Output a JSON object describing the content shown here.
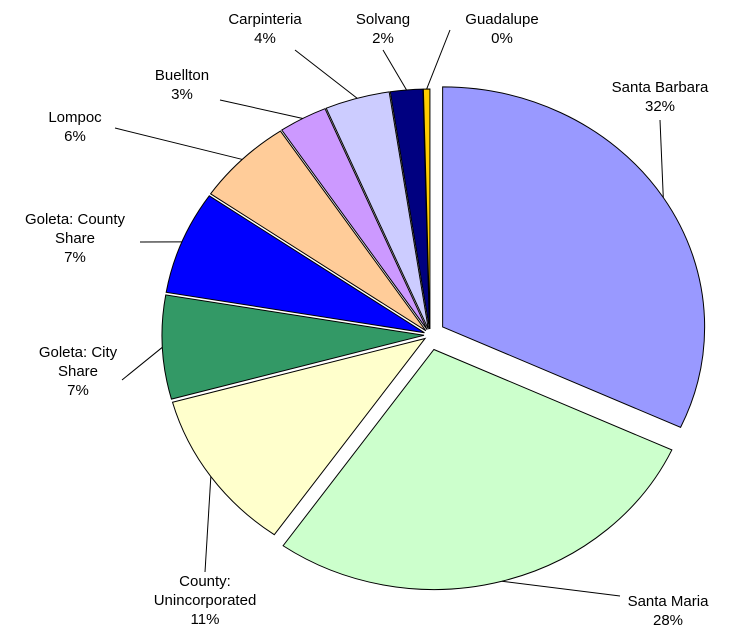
{
  "chart_data": {
    "type": "pie",
    "categories": [
      "Santa Barbara",
      "Santa Maria",
      "County: Unincorporated",
      "Goleta: City Share",
      "Goleta: County Share",
      "Lompoc",
      "Buellton",
      "Carpinteria",
      "Solvang",
      "Guadalupe"
    ],
    "values": [
      32,
      28,
      11,
      7,
      7,
      6,
      3,
      4,
      2,
      0.4
    ],
    "value_labels": [
      "32%",
      "28%",
      "11%",
      "7%",
      "7%",
      "6%",
      "3%",
      "4%",
      "2%",
      "0%"
    ],
    "colors": [
      "#9999ff",
      "#ccffcc",
      "#ffffcc",
      "#339966",
      "#0000ff",
      "#ffcc99",
      "#cc99ff",
      "#ccccff",
      "#000080",
      "#ffcc00"
    ]
  }
}
